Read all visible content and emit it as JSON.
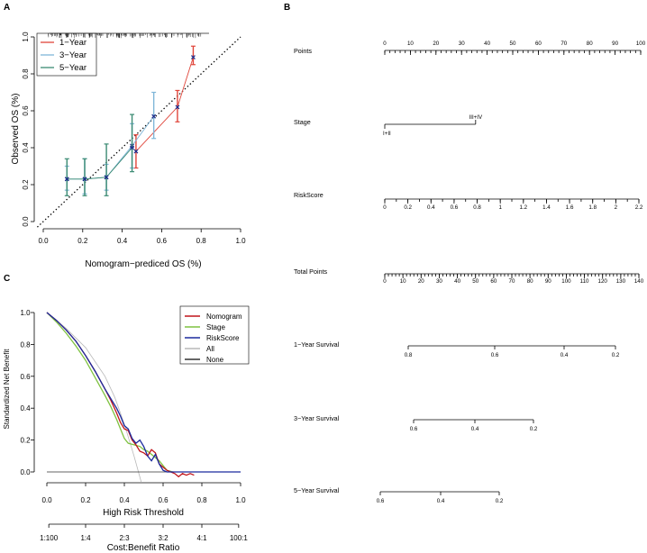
{
  "panels": {
    "a": "A",
    "b": "B",
    "c": "C"
  },
  "chart_data": [
    {
      "type": "line",
      "panel": "A",
      "title": "",
      "xlabel": "Nomogram−prediced OS (%)",
      "ylabel": "Observed OS (%)",
      "xlim": [
        0,
        1
      ],
      "ylim": [
        0,
        1
      ],
      "xticks": [
        "0.0",
        "0.2",
        "0.4",
        "0.6",
        "0.8",
        "1.0"
      ],
      "yticks": [
        "0.0",
        "0.2",
        "0.4",
        "0.6",
        "0.8",
        "1.0"
      ],
      "colors": {
        "1-Year": "#e0453a",
        "3-Year": "#7fb6d8",
        "5-Year": "#3b8b73"
      },
      "series": [
        {
          "name": "1−Year",
          "key": "1-Year",
          "x": [
            0.47,
            0.68,
            0.76
          ],
          "y": [
            0.38,
            0.62,
            0.89
          ],
          "lo": [
            0.29,
            0.54,
            0.85
          ],
          "hi": [
            0.47,
            0.71,
            0.95
          ]
        },
        {
          "name": "3−Year",
          "key": "3-Year",
          "x": [
            0.12,
            0.21,
            0.32,
            0.45,
            0.56
          ],
          "y": [
            0.23,
            0.23,
            0.24,
            0.41,
            0.57
          ],
          "lo": [
            0.17,
            0.15,
            0.17,
            0.29,
            0.45
          ],
          "hi": [
            0.3,
            0.34,
            0.31,
            0.53,
            0.7
          ]
        },
        {
          "name": "5−Year",
          "key": "5-Year",
          "x": [
            0.12,
            0.21,
            0.32,
            0.45
          ],
          "y": [
            0.23,
            0.23,
            0.24,
            0.4
          ],
          "lo": [
            0.14,
            0.14,
            0.14,
            0.27
          ],
          "hi": [
            0.34,
            0.34,
            0.42,
            0.58
          ]
        }
      ],
      "reference_line": "diagonal"
    },
    {
      "type": "nomogram",
      "panel": "B",
      "scales": [
        {
          "label": "Points",
          "ticks": [
            "0",
            "10",
            "20",
            "30",
            "40",
            "50",
            "60",
            "70",
            "80",
            "90",
            "100"
          ],
          "minor": 50
        },
        {
          "label": "Stage",
          "categories": [
            "I+II",
            "III+IV"
          ]
        },
        {
          "label": "RiskScore",
          "ticks": [
            "0",
            "0.2",
            "0.4",
            "0.6",
            "0.8",
            "1",
            "1.2",
            "1.4",
            "1.6",
            "1.8",
            "2",
            "2.2"
          ],
          "minor": 22
        },
        {
          "label": "Total Points",
          "ticks": [
            "0",
            "10",
            "20",
            "30",
            "40",
            "50",
            "60",
            "70",
            "80",
            "90",
            "100",
            "110",
            "120",
            "130",
            "140"
          ],
          "minor": 70
        },
        {
          "label": "1−Year Survival",
          "ticks": [
            "0.8",
            "0.6",
            "0.4",
            "0.2"
          ]
        },
        {
          "label": "3−Year Survival",
          "ticks": [
            "0.6",
            "0.4",
            "0.2"
          ]
        },
        {
          "label": "5−Year Survival",
          "ticks": [
            "0.6",
            "0.4",
            "0.2"
          ]
        }
      ]
    },
    {
      "type": "line",
      "panel": "C",
      "xlabel": "High Risk Threshold",
      "ylabel": "Standardized Net Benefit",
      "x2label": "Cost:Benefit Ratio",
      "xlim": [
        0,
        1
      ],
      "ylim": [
        0,
        1
      ],
      "xticks": [
        "0.0",
        "0.2",
        "0.4",
        "0.6",
        "0.8",
        "1.0"
      ],
      "yticks": [
        "0.0",
        "0.2",
        "0.4",
        "0.6",
        "0.8",
        "1.0"
      ],
      "x2ticks": [
        "1:100",
        "1:4",
        "2:3",
        "3:2",
        "4:1",
        "100:1"
      ],
      "x2tick_positions": [
        0.01,
        0.2,
        0.4,
        0.6,
        0.8,
        0.99
      ],
      "legend_position": "top-right",
      "series": [
        {
          "name": "Nomogram",
          "color": "#c0151b",
          "x": [
            0,
            0.05,
            0.1,
            0.15,
            0.2,
            0.25,
            0.3,
            0.33,
            0.36,
            0.38,
            0.4,
            0.42,
            0.44,
            0.46,
            0.48,
            0.5,
            0.52,
            0.54,
            0.56,
            0.58,
            0.6,
            0.62,
            0.64,
            0.66,
            0.68,
            0.7,
            0.72,
            0.74,
            0.76
          ],
          "y": [
            1.0,
            0.95,
            0.89,
            0.82,
            0.73,
            0.63,
            0.52,
            0.45,
            0.37,
            0.31,
            0.27,
            0.26,
            0.2,
            0.17,
            0.13,
            0.12,
            0.1,
            0.14,
            0.12,
            0.05,
            0.03,
            0.01,
            0.0,
            -0.01,
            -0.03,
            -0.01,
            -0.02,
            -0.01,
            -0.02
          ]
        },
        {
          "name": "Stage",
          "color": "#7fc241",
          "x": [
            0,
            0.05,
            0.1,
            0.15,
            0.2,
            0.25,
            0.3,
            0.33,
            0.36,
            0.38,
            0.4,
            0.42,
            0.45,
            0.48,
            0.5,
            0.52,
            0.55,
            0.58,
            0.6,
            0.62,
            0.65
          ],
          "y": [
            1.0,
            0.94,
            0.87,
            0.79,
            0.7,
            0.59,
            0.48,
            0.41,
            0.33,
            0.27,
            0.21,
            0.18,
            0.17,
            0.16,
            0.14,
            0.13,
            0.1,
            0.07,
            0.04,
            0.01,
            0.0
          ]
        },
        {
          "name": "RiskScore",
          "color": "#1b2a9e",
          "x": [
            0,
            0.05,
            0.1,
            0.15,
            0.2,
            0.25,
            0.3,
            0.33,
            0.36,
            0.38,
            0.4,
            0.42,
            0.44,
            0.46,
            0.48,
            0.5,
            0.52,
            0.54,
            0.56,
            0.58,
            0.6,
            0.62,
            0.65,
            0.7,
            0.75,
            0.8,
            0.9,
            1.0
          ],
          "y": [
            1.0,
            0.95,
            0.89,
            0.82,
            0.73,
            0.63,
            0.52,
            0.46,
            0.4,
            0.35,
            0.29,
            0.27,
            0.21,
            0.18,
            0.2,
            0.16,
            0.1,
            0.07,
            0.11,
            0.05,
            0.01,
            0.0,
            0.0,
            0.0,
            0.0,
            0.0,
            0.0,
            0.0
          ]
        },
        {
          "name": "All",
          "color": "#b8b8b8",
          "x": [
            0,
            0.1,
            0.2,
            0.3,
            0.35,
            0.4,
            0.45,
            0.5
          ],
          "y": [
            1.0,
            0.9,
            0.78,
            0.6,
            0.47,
            0.3,
            0.1,
            -0.12
          ]
        },
        {
          "name": "None",
          "color": "#333333",
          "x": [
            0,
            1
          ],
          "y": [
            0,
            0
          ]
        }
      ]
    }
  ]
}
